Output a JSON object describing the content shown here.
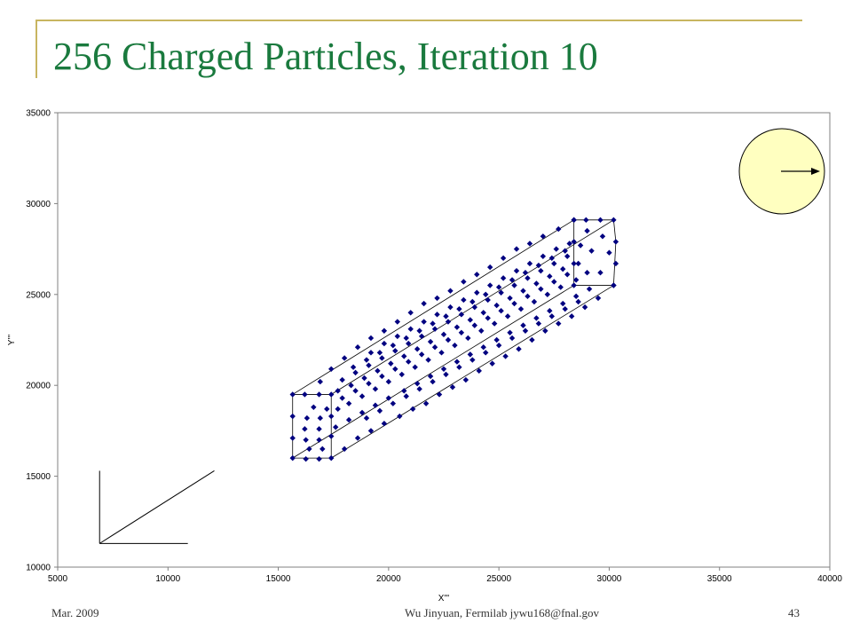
{
  "slide": {
    "title": "256 Charged Particles, Iteration 10",
    "footer_left": "Mar. 2009",
    "footer_center": "Wu Jinyuan, Fermilab jywu168@fnal.gov",
    "footer_right": "43"
  },
  "colors": {
    "title": "#1a7a3e",
    "frame": "#c8b560",
    "marker": "#000080",
    "circle_fill": "#ffffc0"
  },
  "icons": [
    "direction-arrow-icon"
  ],
  "chart_data": {
    "type": "scatter",
    "xlabel": "X'''",
    "ylabel": "Y'''",
    "xlim": [
      5000,
      40000
    ],
    "ylim": [
      10000,
      35000
    ],
    "xticks": [
      "5000",
      "10000",
      "15000",
      "20000",
      "25000",
      "30000",
      "35000",
      "40000"
    ],
    "yticks": [
      "10000",
      "15000",
      "20000",
      "25000",
      "30000",
      "35000"
    ],
    "grid": false,
    "legend": "none",
    "points": [
      [
        15650,
        19500
      ],
      [
        15650,
        18300
      ],
      [
        15650,
        17100
      ],
      [
        15650,
        16000
      ],
      [
        16200,
        19500
      ],
      [
        16300,
        18200
      ],
      [
        16250,
        17000
      ],
      [
        16250,
        15950
      ],
      [
        16850,
        19500
      ],
      [
        16900,
        18200
      ],
      [
        16850,
        17000
      ],
      [
        16850,
        15950
      ],
      [
        17400,
        19500
      ],
      [
        17400,
        18300
      ],
      [
        17400,
        17200
      ],
      [
        17400,
        16000
      ],
      [
        18000,
        16500
      ],
      [
        18600,
        17100
      ],
      [
        19200,
        17500
      ],
      [
        19800,
        17900
      ],
      [
        20500,
        18300
      ],
      [
        21100,
        18700
      ],
      [
        21700,
        19000
      ],
      [
        22300,
        19500
      ],
      [
        22900,
        19900
      ],
      [
        23500,
        20300
      ],
      [
        24100,
        20800
      ],
      [
        24700,
        21200
      ],
      [
        25300,
        21600
      ],
      [
        25900,
        22000
      ],
      [
        26500,
        22500
      ],
      [
        27100,
        23000
      ],
      [
        27700,
        23400
      ],
      [
        28300,
        23800
      ],
      [
        28900,
        24300
      ],
      [
        29500,
        24800
      ],
      [
        30200,
        25500
      ],
      [
        28400,
        29100
      ],
      [
        28950,
        29100
      ],
      [
        29600,
        29100
      ],
      [
        30200,
        29100
      ],
      [
        30300,
        27900
      ],
      [
        30300,
        26700
      ],
      [
        30200,
        25500
      ],
      [
        28400,
        25500
      ],
      [
        28400,
        26700
      ],
      [
        28400,
        27900
      ],
      [
        17400,
        20900
      ],
      [
        18000,
        21500
      ],
      [
        18600,
        22100
      ],
      [
        19200,
        22600
      ],
      [
        19800,
        23000
      ],
      [
        20400,
        23500
      ],
      [
        21000,
        24000
      ],
      [
        21600,
        24500
      ],
      [
        22200,
        24800
      ],
      [
        22800,
        25200
      ],
      [
        23400,
        25700
      ],
      [
        24000,
        26100
      ],
      [
        24600,
        26500
      ],
      [
        25200,
        27000
      ],
      [
        25800,
        27500
      ],
      [
        26400,
        27800
      ],
      [
        27000,
        28200
      ],
      [
        27700,
        28600
      ],
      [
        28400,
        29100
      ],
      [
        16900,
        20200
      ],
      [
        17700,
        19700
      ],
      [
        17700,
        18700
      ],
      [
        17600,
        17700
      ],
      [
        18200,
        18100
      ],
      [
        18800,
        18500
      ],
      [
        19400,
        18900
      ],
      [
        20000,
        19300
      ],
      [
        20700,
        19700
      ],
      [
        21300,
        20100
      ],
      [
        21900,
        20500
      ],
      [
        22500,
        20900
      ],
      [
        23100,
        21300
      ],
      [
        23700,
        21700
      ],
      [
        24300,
        22100
      ],
      [
        24900,
        22500
      ],
      [
        25500,
        22900
      ],
      [
        26100,
        23300
      ],
      [
        26700,
        23700
      ],
      [
        27300,
        24100
      ],
      [
        27900,
        24500
      ],
      [
        28500,
        24900
      ],
      [
        29100,
        25300
      ],
      [
        18200,
        19000
      ],
      [
        18800,
        19400
      ],
      [
        19400,
        19800
      ],
      [
        20000,
        20200
      ],
      [
        20600,
        20600
      ],
      [
        21200,
        21000
      ],
      [
        21800,
        21400
      ],
      [
        22400,
        21800
      ],
      [
        23000,
        22200
      ],
      [
        23600,
        22600
      ],
      [
        24200,
        23000
      ],
      [
        24800,
        23400
      ],
      [
        25400,
        23800
      ],
      [
        26000,
        24200
      ],
      [
        26600,
        24600
      ],
      [
        27200,
        25000
      ],
      [
        27800,
        25400
      ],
      [
        28500,
        25800
      ],
      [
        18300,
        20000
      ],
      [
        18900,
        20400
      ],
      [
        19500,
        20800
      ],
      [
        20100,
        21200
      ],
      [
        20700,
        21600
      ],
      [
        21300,
        22000
      ],
      [
        21900,
        22400
      ],
      [
        22500,
        22800
      ],
      [
        23100,
        23200
      ],
      [
        23700,
        23600
      ],
      [
        24300,
        24000
      ],
      [
        24900,
        24400
      ],
      [
        25500,
        24800
      ],
      [
        26100,
        25200
      ],
      [
        26700,
        25600
      ],
      [
        27300,
        26000
      ],
      [
        27900,
        26400
      ],
      [
        28600,
        26700
      ],
      [
        18400,
        21000
      ],
      [
        19000,
        21400
      ],
      [
        19600,
        21800
      ],
      [
        20200,
        22200
      ],
      [
        20800,
        22600
      ],
      [
        21400,
        23000
      ],
      [
        22000,
        23400
      ],
      [
        22600,
        23800
      ],
      [
        23200,
        24200
      ],
      [
        23800,
        24600
      ],
      [
        24400,
        25000
      ],
      [
        25000,
        25400
      ],
      [
        25600,
        25800
      ],
      [
        26200,
        26200
      ],
      [
        26800,
        26600
      ],
      [
        27400,
        27000
      ],
      [
        28000,
        27400
      ],
      [
        28700,
        27700
      ],
      [
        17900,
        20300
      ],
      [
        18500,
        20700
      ],
      [
        19100,
        21100
      ],
      [
        19700,
        21500
      ],
      [
        20300,
        21900
      ],
      [
        20900,
        22300
      ],
      [
        21500,
        22700
      ],
      [
        22100,
        23100
      ],
      [
        22700,
        23500
      ],
      [
        23300,
        23900
      ],
      [
        23900,
        24300
      ],
      [
        24500,
        24700
      ],
      [
        25100,
        25100
      ],
      [
        25700,
        25500
      ],
      [
        26300,
        25900
      ],
      [
        26900,
        26300
      ],
      [
        27500,
        26700
      ],
      [
        28100,
        27100
      ],
      [
        17900,
        19300
      ],
      [
        18500,
        19700
      ],
      [
        19100,
        20100
      ],
      [
        19700,
        20500
      ],
      [
        20300,
        20900
      ],
      [
        20900,
        21300
      ],
      [
        21500,
        21700
      ],
      [
        22100,
        22100
      ],
      [
        22700,
        22500
      ],
      [
        23300,
        22900
      ],
      [
        23900,
        23300
      ],
      [
        24500,
        23700
      ],
      [
        25100,
        24100
      ],
      [
        25700,
        24500
      ],
      [
        26300,
        24900
      ],
      [
        26900,
        25300
      ],
      [
        27500,
        25700
      ],
      [
        28100,
        26100
      ],
      [
        19000,
        18200
      ],
      [
        19600,
        18600
      ],
      [
        20200,
        19000
      ],
      [
        20800,
        19400
      ],
      [
        21400,
        19800
      ],
      [
        22000,
        20200
      ],
      [
        22600,
        20600
      ],
      [
        23200,
        21000
      ],
      [
        23800,
        21400
      ],
      [
        24400,
        21800
      ],
      [
        25000,
        22200
      ],
      [
        25600,
        22600
      ],
      [
        26200,
        23000
      ],
      [
        26800,
        23400
      ],
      [
        27400,
        23800
      ],
      [
        28000,
        24200
      ],
      [
        28600,
        24600
      ],
      [
        19200,
        21800
      ],
      [
        19800,
        22300
      ],
      [
        20400,
        22700
      ],
      [
        21000,
        23100
      ],
      [
        21600,
        23500
      ],
      [
        22200,
        23900
      ],
      [
        22800,
        24300
      ],
      [
        23400,
        24700
      ],
      [
        24000,
        25100
      ],
      [
        24600,
        25500
      ],
      [
        25200,
        25900
      ],
      [
        25800,
        26300
      ],
      [
        26400,
        26700
      ],
      [
        27000,
        27100
      ],
      [
        27600,
        27500
      ],
      [
        28200,
        27800
      ],
      [
        16200,
        17600
      ],
      [
        16850,
        17600
      ],
      [
        17200,
        18700
      ],
      [
        16600,
        18800
      ],
      [
        17000,
        16500
      ],
      [
        16400,
        16500
      ],
      [
        29000,
        26200
      ],
      [
        29600,
        26200
      ],
      [
        30000,
        27300
      ],
      [
        29200,
        27400
      ],
      [
        29700,
        28200
      ],
      [
        29000,
        28500
      ]
    ],
    "hexagon_edges": [
      [
        [
          15650,
          19500
        ],
        [
          17400,
          19500
        ]
      ],
      [
        [
          17400,
          19500
        ],
        [
          17400,
          16000
        ]
      ],
      [
        [
          17400,
          16000
        ],
        [
          15650,
          16000
        ]
      ],
      [
        [
          15650,
          16000
        ],
        [
          15650,
          19500
        ]
      ],
      [
        [
          28400,
          29100
        ],
        [
          30200,
          29100
        ]
      ],
      [
        [
          30200,
          29100
        ],
        [
          30300,
          27900
        ]
      ],
      [
        [
          30300,
          27900
        ],
        [
          30200,
          25500
        ]
      ],
      [
        [
          30200,
          25500
        ],
        [
          28400,
          25500
        ]
      ],
      [
        [
          28400,
          25500
        ],
        [
          28400,
          29100
        ]
      ],
      [
        [
          15650,
          19500
        ],
        [
          28400,
          29100
        ]
      ],
      [
        [
          17400,
          19500
        ],
        [
          30200,
          29100
        ]
      ],
      [
        [
          17400,
          16000
        ],
        [
          30200,
          25500
        ]
      ],
      [
        [
          15650,
          16000
        ],
        [
          28400,
          25500
        ]
      ]
    ],
    "axes_indicator_lines": [
      [
        [
          6900,
          15300
        ],
        [
          6900,
          11300
        ]
      ],
      [
        [
          6900,
          11300
        ],
        [
          10900,
          11300
        ]
      ],
      [
        [
          6900,
          11300
        ],
        [
          12100,
          15300
        ]
      ]
    ]
  }
}
